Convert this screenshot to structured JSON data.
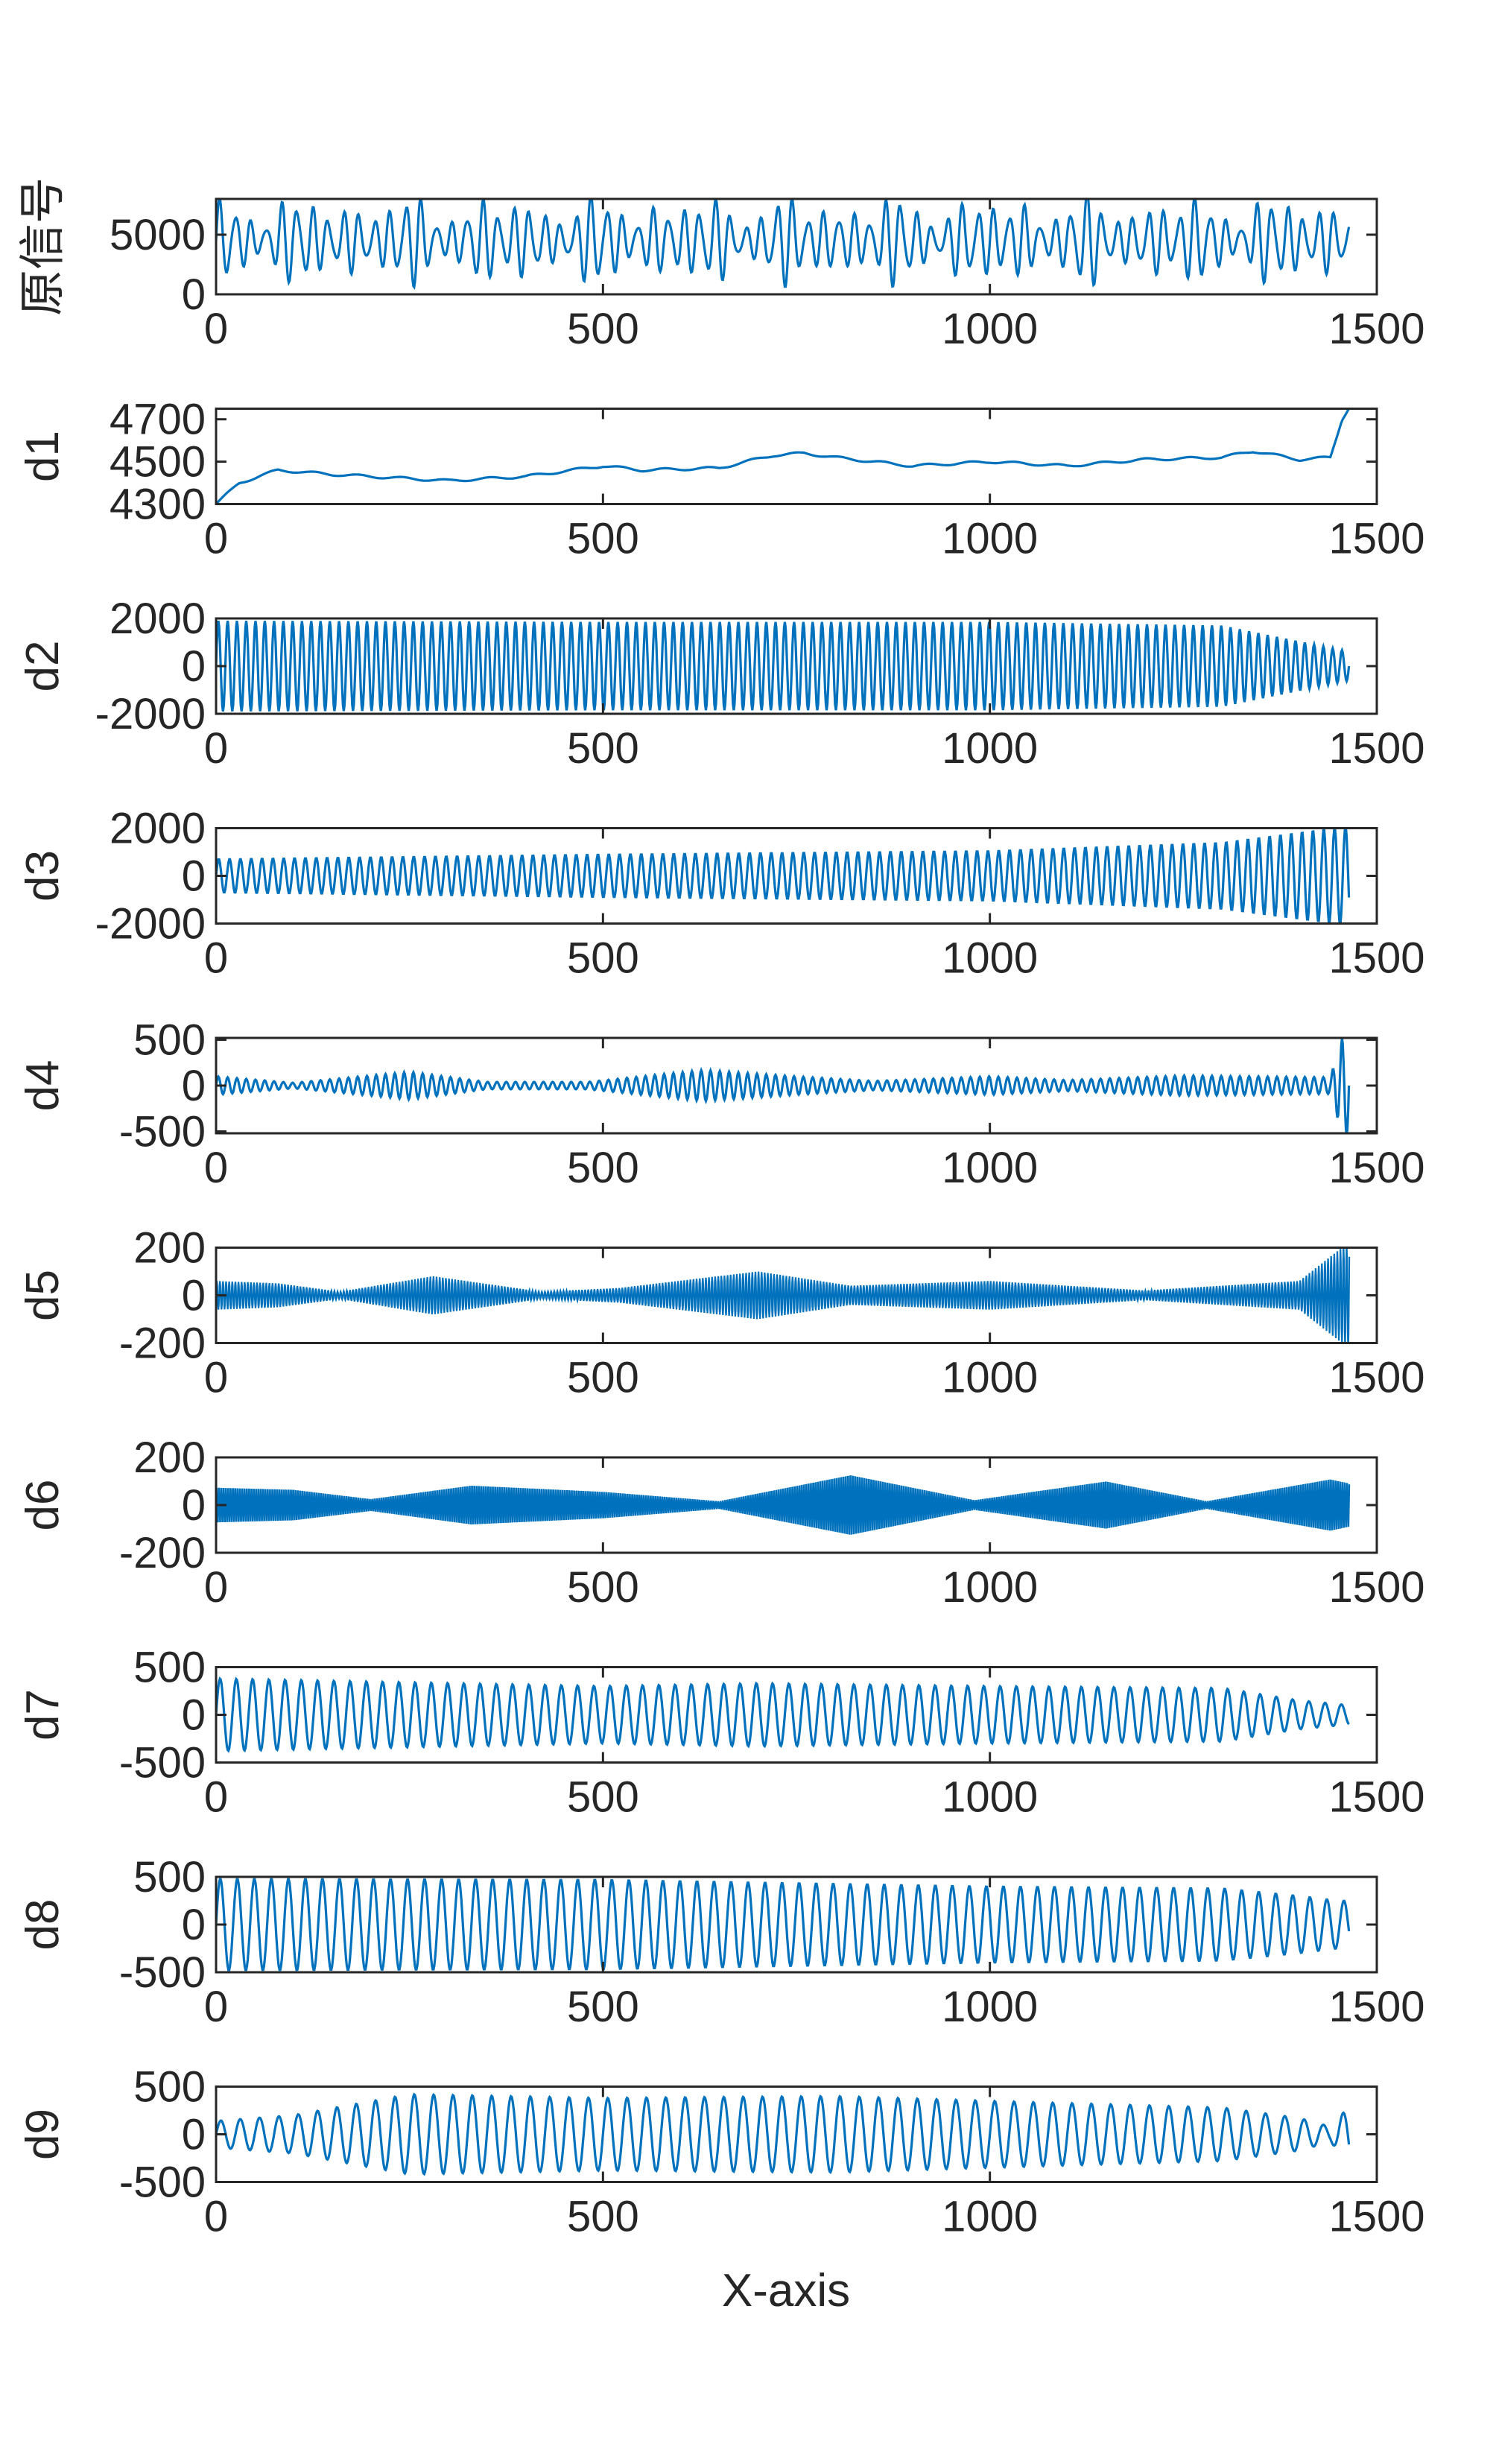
{
  "chart_data": {
    "type": "line",
    "layout": "stacked-subplots",
    "xlabel": "X-axis",
    "xlim": [
      0,
      1500
    ],
    "xticks": [
      0,
      500,
      1000,
      1500
    ],
    "line_color": "#0072BD",
    "grid": "off",
    "n_samples": 1465,
    "subplots": [
      {
        "ylabel": "原信号",
        "ylim": [
          0,
          8000
        ],
        "yticks": [
          0,
          5000
        ],
        "description_values": {
          "mean": 4500,
          "amp_min": 1000,
          "amp_max": 3300,
          "period_samples": 20
        }
      },
      {
        "ylabel": "d1",
        "ylim": [
          4300,
          4750
        ],
        "yticks": [
          4300,
          4500,
          4700
        ],
        "trend_points": [
          [
            0,
            4300
          ],
          [
            30,
            4400
          ],
          [
            80,
            4460
          ],
          [
            150,
            4440
          ],
          [
            250,
            4420
          ],
          [
            300,
            4410
          ],
          [
            400,
            4430
          ],
          [
            500,
            4480
          ],
          [
            550,
            4460
          ],
          [
            650,
            4470
          ],
          [
            720,
            4530
          ],
          [
            760,
            4540
          ],
          [
            800,
            4520
          ],
          [
            900,
            4480
          ],
          [
            1000,
            4500
          ],
          [
            1100,
            4480
          ],
          [
            1200,
            4510
          ],
          [
            1300,
            4520
          ],
          [
            1340,
            4550
          ],
          [
            1400,
            4510
          ],
          [
            1440,
            4520
          ],
          [
            1455,
            4700
          ],
          [
            1465,
            4760
          ]
        ]
      },
      {
        "ylabel": "d2",
        "ylim": [
          -2000,
          2000
        ],
        "yticks": [
          -2000,
          0,
          2000
        ],
        "envelope": [
          [
            0,
            1900
          ],
          [
            500,
            1850
          ],
          [
            1000,
            1850
          ],
          [
            1300,
            1700
          ],
          [
            1465,
            600
          ]
        ],
        "period_samples": 12
      },
      {
        "ylabel": "d3",
        "ylim": [
          -2000,
          2000
        ],
        "yticks": [
          -2000,
          0,
          2000
        ],
        "envelope": [
          [
            0,
            700
          ],
          [
            500,
            900
          ],
          [
            1000,
            1050
          ],
          [
            1300,
            1400
          ],
          [
            1440,
            2000
          ],
          [
            1465,
            2100
          ]
        ],
        "period_samples": 14
      },
      {
        "ylabel": "d4",
        "ylim": [
          -520,
          520
        ],
        "yticks": [
          -500,
          0,
          500
        ],
        "envelope": [
          [
            0,
            100
          ],
          [
            100,
            30
          ],
          [
            250,
            150
          ],
          [
            350,
            40
          ],
          [
            480,
            40
          ],
          [
            630,
            170
          ],
          [
            750,
            100
          ],
          [
            850,
            50
          ],
          [
            1000,
            100
          ],
          [
            1100,
            60
          ],
          [
            1250,
            110
          ],
          [
            1440,
            90
          ],
          [
            1455,
            520
          ],
          [
            1465,
            560
          ]
        ],
        "period_samples": 12
      },
      {
        "ylabel": "d5",
        "ylim": [
          -200,
          200
        ],
        "yticks": [
          -200,
          0,
          200
        ],
        "envelope": [
          [
            0,
            60
          ],
          [
            80,
            50
          ],
          [
            160,
            15
          ],
          [
            280,
            80
          ],
          [
            420,
            15
          ],
          [
            520,
            30
          ],
          [
            700,
            100
          ],
          [
            820,
            40
          ],
          [
            1000,
            60
          ],
          [
            1150,
            30
          ],
          [
            1200,
            20
          ],
          [
            1400,
            60
          ],
          [
            1455,
            200
          ],
          [
            1465,
            230
          ]
        ],
        "period_samples": 4
      },
      {
        "ylabel": "d6",
        "ylim": [
          -200,
          200
        ],
        "yticks": [
          -200,
          0,
          200
        ],
        "envelope": [
          [
            0,
            80
          ],
          [
            100,
            70
          ],
          [
            200,
            25
          ],
          [
            330,
            90
          ],
          [
            500,
            60
          ],
          [
            650,
            15
          ],
          [
            820,
            140
          ],
          [
            980,
            20
          ],
          [
            1150,
            110
          ],
          [
            1280,
            15
          ],
          [
            1440,
            120
          ],
          [
            1465,
            100
          ]
        ],
        "period_samples": 3
      },
      {
        "ylabel": "d7",
        "ylim": [
          -500,
          500
        ],
        "yticks": [
          -500,
          0,
          500
        ],
        "envelope": [
          [
            0,
            380
          ],
          [
            500,
            300
          ],
          [
            700,
            330
          ],
          [
            1000,
            300
          ],
          [
            1300,
            280
          ],
          [
            1400,
            150
          ],
          [
            1440,
            120
          ],
          [
            1465,
            100
          ]
        ],
        "period_samples": 21
      },
      {
        "ylabel": "d8",
        "ylim": [
          -500,
          500
        ],
        "yticks": [
          -500,
          0,
          500
        ],
        "envelope": [
          [
            0,
            480
          ],
          [
            500,
            470
          ],
          [
            1000,
            400
          ],
          [
            1300,
            380
          ],
          [
            1400,
            300
          ],
          [
            1450,
            250
          ],
          [
            1465,
            250
          ]
        ],
        "period_samples": 22
      },
      {
        "ylabel": "d9",
        "ylim": [
          -500,
          500
        ],
        "yticks": [
          -500,
          0,
          500
        ],
        "envelope": [
          [
            0,
            140
          ],
          [
            100,
            200
          ],
          [
            250,
            420
          ],
          [
            500,
            380
          ],
          [
            800,
            400
          ],
          [
            1000,
            350
          ],
          [
            1300,
            280
          ],
          [
            1400,
            170
          ],
          [
            1440,
            80
          ],
          [
            1465,
            300
          ]
        ],
        "period_samples": 25
      }
    ]
  }
}
